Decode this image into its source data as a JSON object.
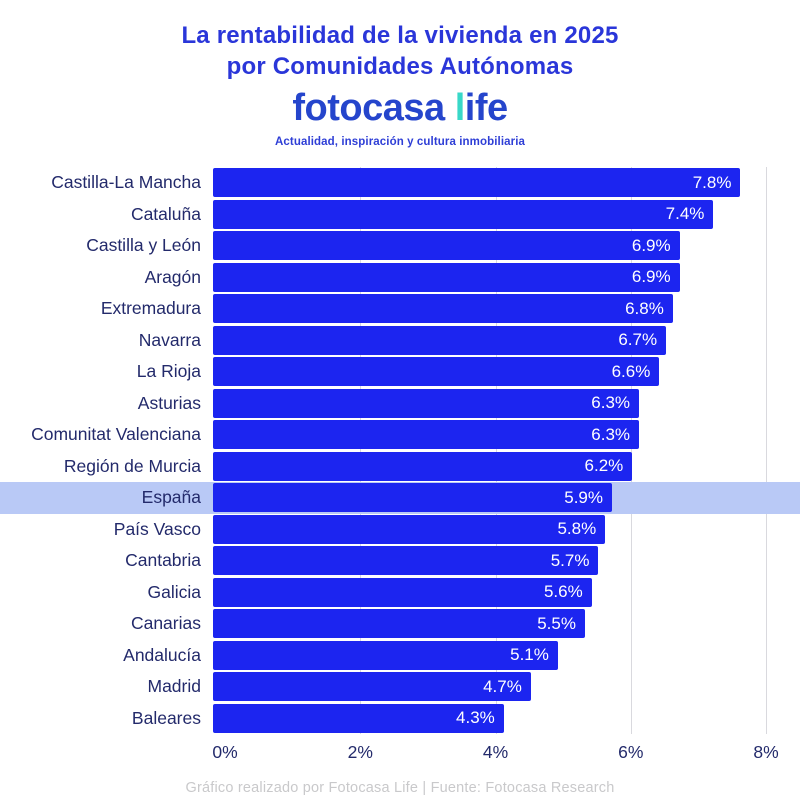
{
  "header": {
    "title_line1": "La rentabilidad de la vivienda en 2025",
    "title_line2": "por Comunidades Autónomas",
    "logo": {
      "brand_part1": "fotocasa ",
      "brand_part2_accent": "l",
      "brand_part2_rest": "ife",
      "tagline": "Actualidad, inspiración y cultura inmobiliaria"
    }
  },
  "chart_data": {
    "type": "bar",
    "orientation": "horizontal",
    "title": "La rentabilidad de la vivienda en 2025 por Comunidades Autónomas",
    "categories": [
      "Castilla-La Mancha",
      "Cataluña",
      "Castilla y León",
      "Aragón",
      "Extremadura",
      "Navarra",
      "La Rioja",
      "Asturias",
      "Comunitat Valenciana",
      "Región de Murcia",
      "España",
      "País Vasco",
      "Cantabria",
      "Galicia",
      "Canarias",
      "Andalucía",
      "Madrid",
      "Baleares"
    ],
    "values": [
      7.8,
      7.4,
      6.9,
      6.9,
      6.8,
      6.7,
      6.6,
      6.3,
      6.3,
      6.2,
      5.9,
      5.8,
      5.7,
      5.6,
      5.5,
      5.1,
      4.7,
      4.3
    ],
    "value_suffix": "%",
    "highlighted_category": "España",
    "x_ticks": [
      "0%",
      "2%",
      "4%",
      "6%",
      "8%"
    ],
    "x_tick_values": [
      0,
      2,
      4,
      6,
      8
    ],
    "xlim": [
      0,
      8
    ],
    "grid": true,
    "legend": false
  },
  "footer": {
    "credit": "Gráfico realizado por Fotocasa Life | Fuente: Fotocasa Research"
  },
  "colors": {
    "bar": "#1c25f0",
    "highlight_band": "#b9c9f6",
    "title": "#2a36d9",
    "category_label": "#232a6b",
    "logo_blue": "#2545cc",
    "logo_teal": "#38d8c8",
    "gridline": "#d9d9de",
    "value_label": "#ffffff",
    "footer_text": "#c9c9cb"
  }
}
